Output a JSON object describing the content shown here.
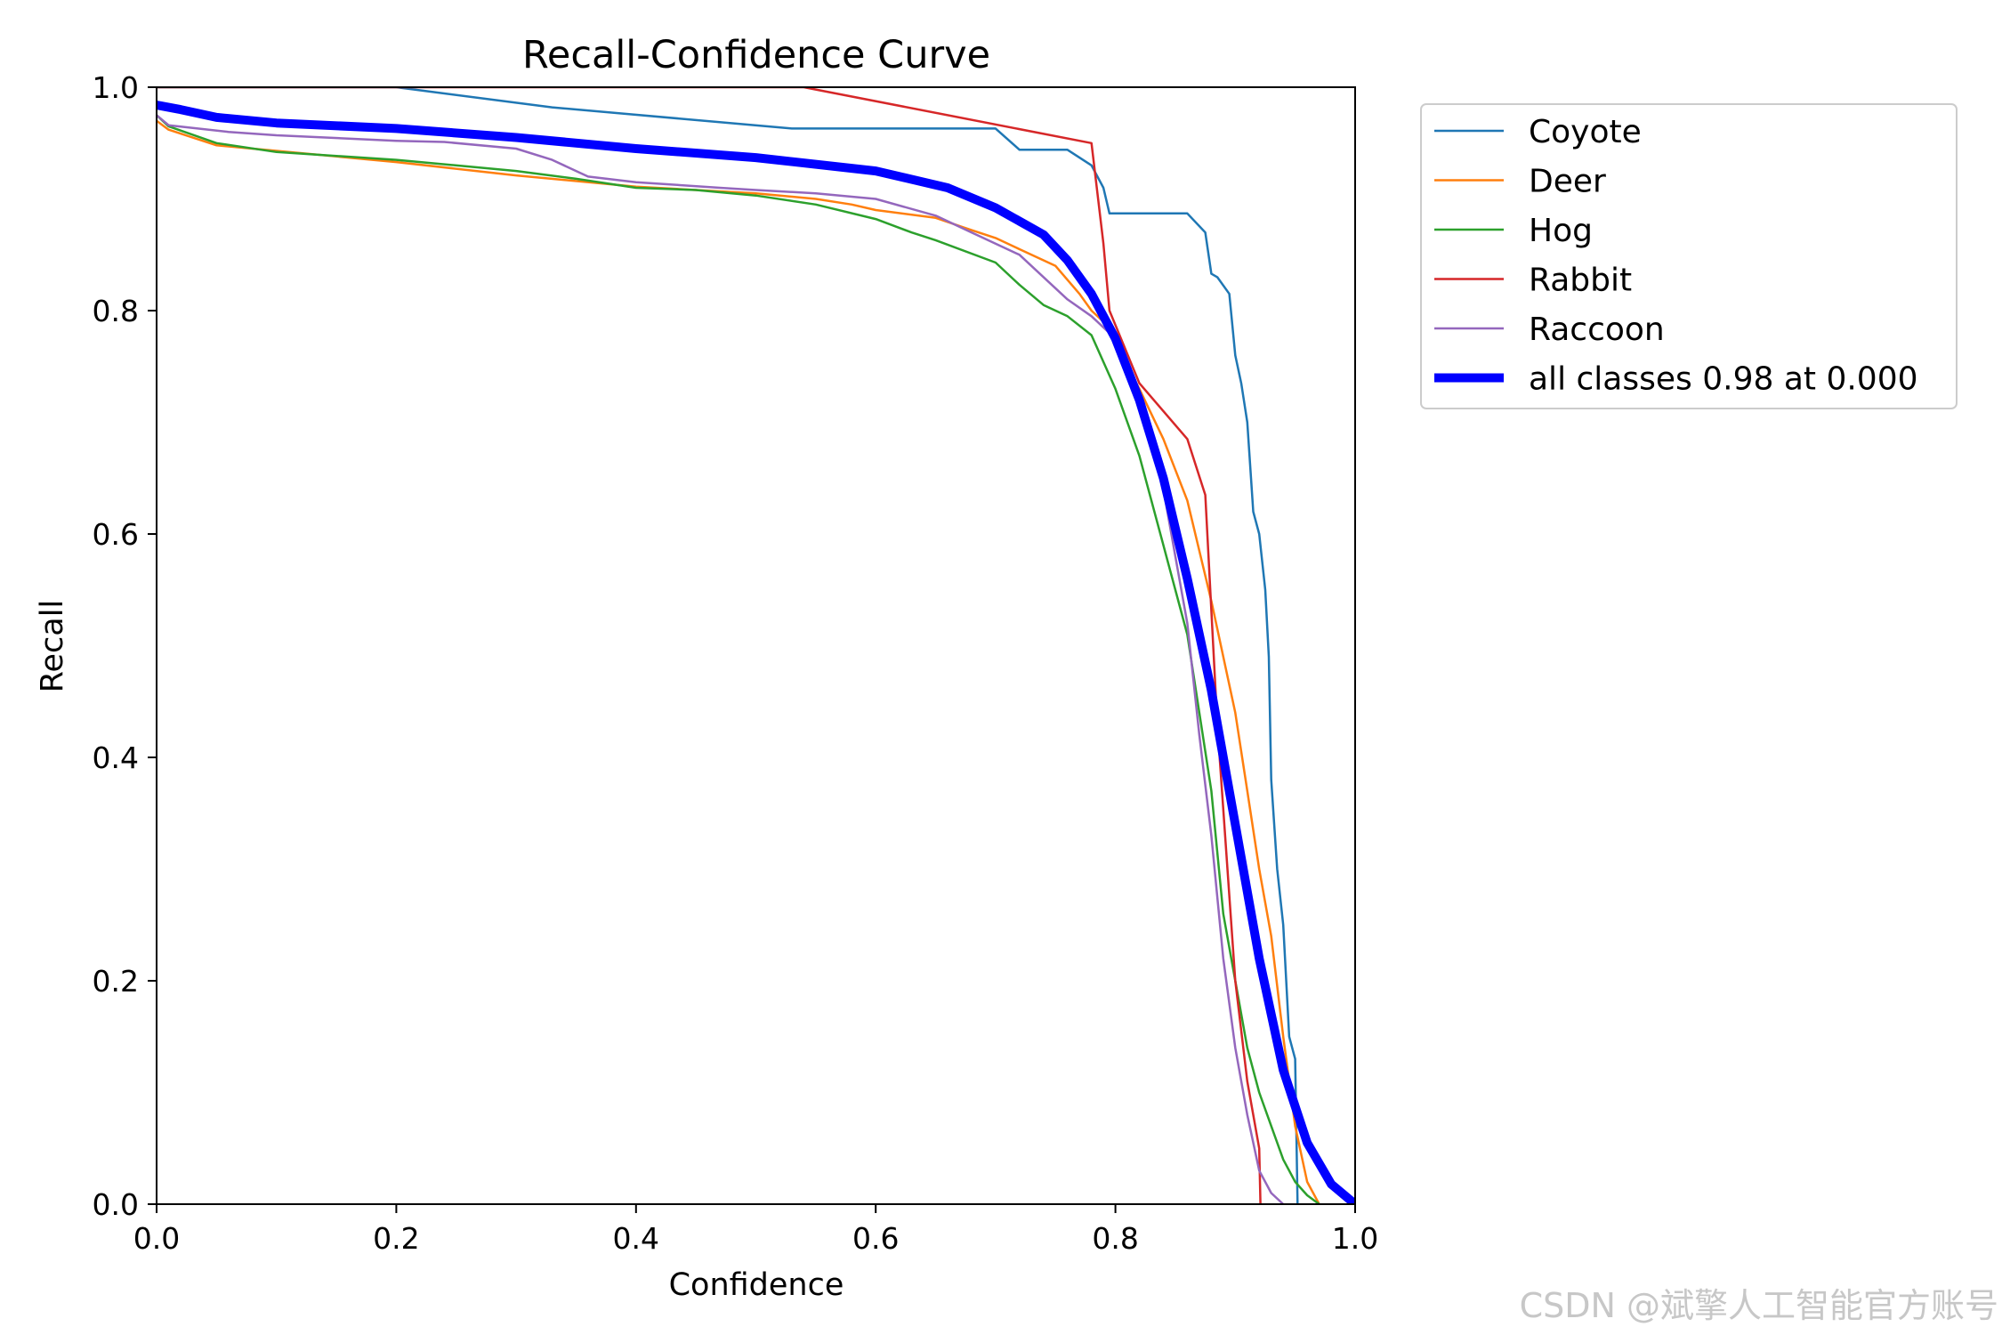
{
  "chart_data": {
    "type": "line",
    "title": "Recall-Confidence Curve",
    "xlabel": "Confidence",
    "ylabel": "Recall",
    "xlim": [
      0,
      1
    ],
    "ylim": [
      0,
      1
    ],
    "xticks": [
      "0.0",
      "0.2",
      "0.4",
      "0.6",
      "0.8",
      "1.0"
    ],
    "yticks": [
      "0.0",
      "0.2",
      "0.4",
      "0.6",
      "0.8",
      "1.0"
    ],
    "grid": false,
    "legend_position": "outside-top-right",
    "series": [
      {
        "name": "Coyote",
        "color": "#1f77b4",
        "points": [
          [
            0.0,
            1.0
          ],
          [
            0.2,
            1.0
          ],
          [
            0.33,
            0.982
          ],
          [
            0.53,
            0.963
          ],
          [
            0.7,
            0.963
          ],
          [
            0.72,
            0.944
          ],
          [
            0.76,
            0.944
          ],
          [
            0.78,
            0.93
          ],
          [
            0.79,
            0.91
          ],
          [
            0.795,
            0.887
          ],
          [
            0.86,
            0.887
          ],
          [
            0.875,
            0.87
          ],
          [
            0.88,
            0.833
          ],
          [
            0.885,
            0.83
          ],
          [
            0.895,
            0.815
          ],
          [
            0.9,
            0.76
          ],
          [
            0.905,
            0.735
          ],
          [
            0.91,
            0.7
          ],
          [
            0.915,
            0.62
          ],
          [
            0.92,
            0.6
          ],
          [
            0.925,
            0.55
          ],
          [
            0.928,
            0.49
          ],
          [
            0.93,
            0.38
          ],
          [
            0.935,
            0.3
          ],
          [
            0.94,
            0.25
          ],
          [
            0.945,
            0.15
          ],
          [
            0.95,
            0.13
          ],
          [
            0.952,
            0.0
          ]
        ]
      },
      {
        "name": "Deer",
        "color": "#ff7f0e",
        "points": [
          [
            0.0,
            0.97
          ],
          [
            0.01,
            0.962
          ],
          [
            0.05,
            0.948
          ],
          [
            0.1,
            0.943
          ],
          [
            0.2,
            0.933
          ],
          [
            0.3,
            0.921
          ],
          [
            0.4,
            0.911
          ],
          [
            0.5,
            0.905
          ],
          [
            0.55,
            0.9
          ],
          [
            0.58,
            0.895
          ],
          [
            0.6,
            0.89
          ],
          [
            0.65,
            0.883
          ],
          [
            0.68,
            0.872
          ],
          [
            0.7,
            0.865
          ],
          [
            0.72,
            0.855
          ],
          [
            0.75,
            0.84
          ],
          [
            0.77,
            0.815
          ],
          [
            0.78,
            0.8
          ],
          [
            0.79,
            0.79
          ],
          [
            0.8,
            0.77
          ],
          [
            0.82,
            0.73
          ],
          [
            0.84,
            0.685
          ],
          [
            0.86,
            0.63
          ],
          [
            0.88,
            0.54
          ],
          [
            0.9,
            0.44
          ],
          [
            0.91,
            0.37
          ],
          [
            0.92,
            0.3
          ],
          [
            0.93,
            0.24
          ],
          [
            0.94,
            0.15
          ],
          [
            0.95,
            0.07
          ],
          [
            0.96,
            0.02
          ],
          [
            0.97,
            0.0
          ]
        ]
      },
      {
        "name": "Hog",
        "color": "#2ca02c",
        "points": [
          [
            0.0,
            0.975
          ],
          [
            0.01,
            0.965
          ],
          [
            0.05,
            0.95
          ],
          [
            0.1,
            0.942
          ],
          [
            0.2,
            0.935
          ],
          [
            0.3,
            0.925
          ],
          [
            0.35,
            0.918
          ],
          [
            0.4,
            0.91
          ],
          [
            0.45,
            0.908
          ],
          [
            0.5,
            0.903
          ],
          [
            0.55,
            0.895
          ],
          [
            0.6,
            0.882
          ],
          [
            0.63,
            0.87
          ],
          [
            0.65,
            0.863
          ],
          [
            0.7,
            0.843
          ],
          [
            0.72,
            0.823
          ],
          [
            0.74,
            0.805
          ],
          [
            0.76,
            0.795
          ],
          [
            0.78,
            0.778
          ],
          [
            0.8,
            0.73
          ],
          [
            0.82,
            0.67
          ],
          [
            0.84,
            0.59
          ],
          [
            0.86,
            0.51
          ],
          [
            0.87,
            0.44
          ],
          [
            0.88,
            0.37
          ],
          [
            0.89,
            0.26
          ],
          [
            0.9,
            0.2
          ],
          [
            0.91,
            0.14
          ],
          [
            0.92,
            0.1
          ],
          [
            0.93,
            0.07
          ],
          [
            0.94,
            0.04
          ],
          [
            0.95,
            0.02
          ],
          [
            0.96,
            0.008
          ],
          [
            0.97,
            0.0
          ]
        ]
      },
      {
        "name": "Rabbit",
        "color": "#d62728",
        "points": [
          [
            0.0,
            1.0
          ],
          [
            0.54,
            1.0
          ],
          [
            0.78,
            0.95
          ],
          [
            0.79,
            0.86
          ],
          [
            0.795,
            0.8
          ],
          [
            0.82,
            0.735
          ],
          [
            0.86,
            0.685
          ],
          [
            0.875,
            0.635
          ],
          [
            0.885,
            0.43
          ],
          [
            0.9,
            0.2
          ],
          [
            0.91,
            0.11
          ],
          [
            0.92,
            0.05
          ],
          [
            0.921,
            0.0
          ]
        ]
      },
      {
        "name": "Raccoon",
        "color": "#9467bd",
        "points": [
          [
            0.0,
            0.975
          ],
          [
            0.01,
            0.966
          ],
          [
            0.06,
            0.96
          ],
          [
            0.1,
            0.957
          ],
          [
            0.2,
            0.952
          ],
          [
            0.24,
            0.951
          ],
          [
            0.3,
            0.945
          ],
          [
            0.33,
            0.935
          ],
          [
            0.36,
            0.92
          ],
          [
            0.4,
            0.915
          ],
          [
            0.47,
            0.91
          ],
          [
            0.5,
            0.908
          ],
          [
            0.55,
            0.905
          ],
          [
            0.6,
            0.9
          ],
          [
            0.65,
            0.885
          ],
          [
            0.68,
            0.87
          ],
          [
            0.72,
            0.85
          ],
          [
            0.74,
            0.83
          ],
          [
            0.76,
            0.81
          ],
          [
            0.78,
            0.795
          ],
          [
            0.8,
            0.775
          ],
          [
            0.82,
            0.72
          ],
          [
            0.84,
            0.64
          ],
          [
            0.86,
            0.52
          ],
          [
            0.87,
            0.42
          ],
          [
            0.88,
            0.33
          ],
          [
            0.89,
            0.22
          ],
          [
            0.9,
            0.14
          ],
          [
            0.91,
            0.08
          ],
          [
            0.92,
            0.03
          ],
          [
            0.93,
            0.01
          ],
          [
            0.94,
            0.0
          ]
        ]
      },
      {
        "name": "all classes 0.98 at 0.000",
        "color": "#0000ff",
        "thick": true,
        "points": [
          [
            0.0,
            0.984
          ],
          [
            0.02,
            0.98
          ],
          [
            0.05,
            0.973
          ],
          [
            0.1,
            0.968
          ],
          [
            0.2,
            0.963
          ],
          [
            0.3,
            0.955
          ],
          [
            0.4,
            0.945
          ],
          [
            0.5,
            0.937
          ],
          [
            0.6,
            0.925
          ],
          [
            0.66,
            0.91
          ],
          [
            0.7,
            0.892
          ],
          [
            0.74,
            0.868
          ],
          [
            0.76,
            0.845
          ],
          [
            0.78,
            0.815
          ],
          [
            0.8,
            0.775
          ],
          [
            0.82,
            0.72
          ],
          [
            0.84,
            0.65
          ],
          [
            0.86,
            0.56
          ],
          [
            0.88,
            0.46
          ],
          [
            0.9,
            0.34
          ],
          [
            0.92,
            0.22
          ],
          [
            0.94,
            0.12
          ],
          [
            0.96,
            0.055
          ],
          [
            0.98,
            0.018
          ],
          [
            1.0,
            0.0
          ]
        ]
      }
    ]
  },
  "watermark": "CSDN @斌擎人工智能官方账号"
}
